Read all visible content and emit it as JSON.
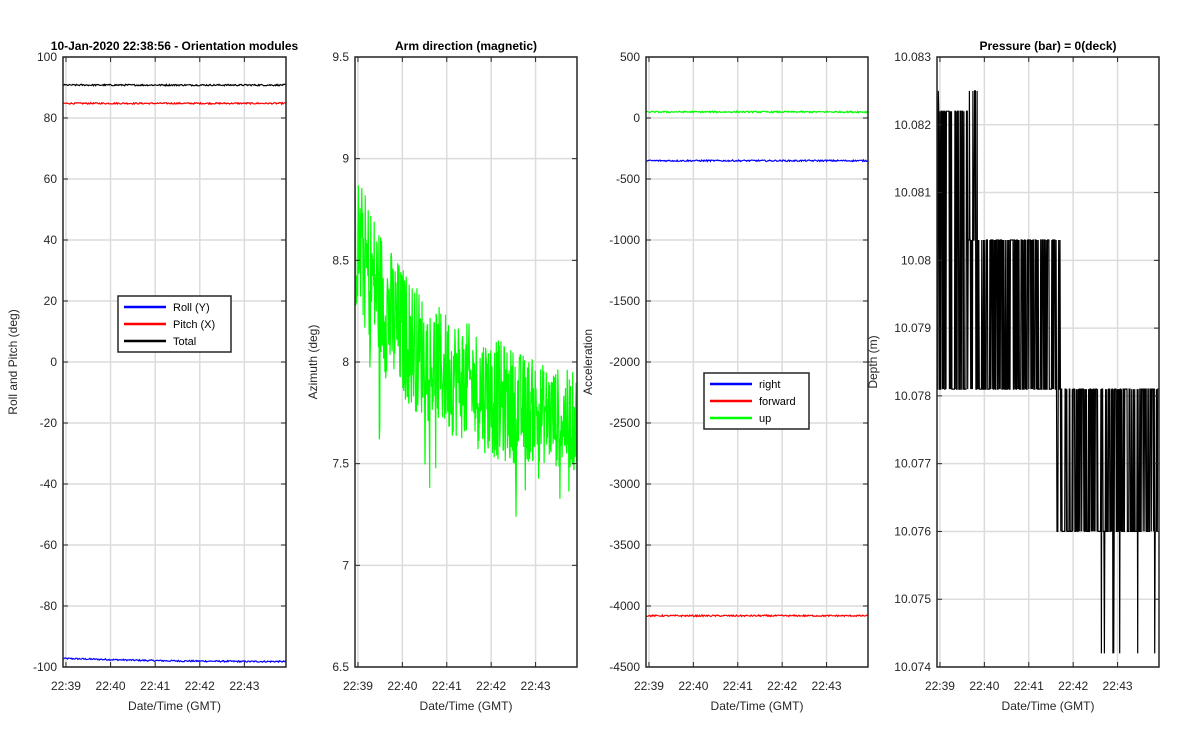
{
  "chart_data": [
    {
      "type": "line",
      "title": "10-Jan-2020 22:38:56 - Orientation modules",
      "xlabel": "Date/Time (GMT)",
      "ylabel": "Roll and Pitch (deg)",
      "x_ticks": [
        "22:39",
        "22:40",
        "22:41",
        "22:42",
        "22:43"
      ],
      "xlim": [
        "22:38:56",
        "22:43:56"
      ],
      "ylim": [
        -100,
        100
      ],
      "y_ticks": [
        "-100",
        "-80",
        "-60",
        "-40",
        "-20",
        "0",
        "20",
        "40",
        "60",
        "80",
        "100"
      ],
      "grid": true,
      "legend_position": "center",
      "series": [
        {
          "name": "Roll (Y)",
          "color": "#0000ff",
          "values": [
            -97.2,
            -97.5,
            -97.8,
            -98.0,
            -98.1,
            -98.2,
            -98.2
          ]
        },
        {
          "name": "Pitch (X)",
          "color": "#ff0000",
          "values": [
            84.8,
            84.8,
            84.8,
            84.8,
            84.8,
            84.8,
            84.8
          ]
        },
        {
          "name": "Total",
          "color": "#000000",
          "values": [
            90.8,
            90.8,
            90.8,
            90.8,
            90.8,
            90.8,
            90.8
          ]
        }
      ]
    },
    {
      "type": "line",
      "title": "Arm direction (magnetic)",
      "xlabel": "Date/Time (GMT)",
      "ylabel": "Azimuth (deg)",
      "x_ticks": [
        "22:39",
        "22:40",
        "22:41",
        "22:42",
        "22:43"
      ],
      "xlim": [
        "22:38:56",
        "22:43:56"
      ],
      "ylim": [
        6.5,
        9.5
      ],
      "y_ticks": [
        "6.5",
        "7",
        "7.5",
        "8",
        "8.5",
        "9",
        "9.5"
      ],
      "grid": true,
      "series": [
        {
          "color": "#00ff00",
          "mean": [
            8.6,
            8.2,
            8.0,
            7.9,
            7.8,
            7.75,
            7.7
          ],
          "noise": [
            0.35,
            0.35,
            0.3,
            0.3,
            0.3,
            0.25,
            0.25
          ],
          "min": 6.93,
          "max": 9.02
        }
      ]
    },
    {
      "type": "line",
      "title": "",
      "xlabel": "Date/Time (GMT)",
      "ylabel": "Acceleration",
      "x_ticks": [
        "22:39",
        "22:40",
        "22:41",
        "22:42",
        "22:43"
      ],
      "xlim": [
        "22:38:56",
        "22:43:56"
      ],
      "ylim": [
        -4500,
        500
      ],
      "y_ticks": [
        "-4500",
        "-4000",
        "-3500",
        "-3000",
        "-2500",
        "-2000",
        "-1500",
        "-1000",
        "-500",
        "0",
        "500"
      ],
      "grid": true,
      "legend_position": "center-right",
      "series": [
        {
          "name": "right",
          "color": "#0000ff",
          "values": [
            -350,
            -350,
            -350,
            -350,
            -350,
            -350,
            -350
          ]
        },
        {
          "name": "forward",
          "color": "#ff0000",
          "values": [
            -4080,
            -4080,
            -4080,
            -4080,
            -4080,
            -4080,
            -4080
          ]
        },
        {
          "name": "up",
          "color": "#00ff00",
          "values": [
            50,
            50,
            50,
            50,
            50,
            50,
            50
          ]
        }
      ]
    },
    {
      "type": "line",
      "title": "Pressure (bar) = 0(deck)",
      "xlabel": "Date/Time (GMT)",
      "ylabel": "Depth (m)",
      "x_ticks": [
        "22:39",
        "22:40",
        "22:41",
        "22:42",
        "22:43"
      ],
      "xlim": [
        "22:38:56",
        "22:43:56"
      ],
      "ylim": [
        10.074,
        10.083
      ],
      "y_ticks": [
        "10.074",
        "10.075",
        "10.076",
        "10.077",
        "10.078",
        "10.079",
        "10.08",
        "10.081",
        "10.082",
        "10.083"
      ],
      "grid": true,
      "series": [
        {
          "color": "#000000",
          "levels": [
            10.0781,
            10.0803,
            10.0822
          ],
          "spike_low": 10.0742,
          "max": 10.0825
        }
      ]
    }
  ]
}
